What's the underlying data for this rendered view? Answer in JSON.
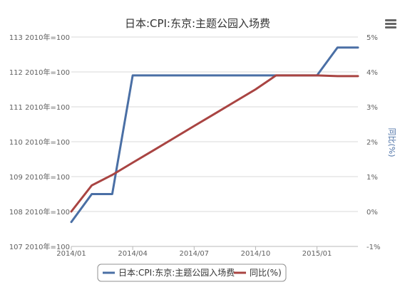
{
  "chart_data": {
    "type": "line",
    "title": "日本:CPI:东京:主题公园入场费",
    "x": [
      "2014/01",
      "2014/02",
      "2014/03",
      "2014/04",
      "2014/05",
      "2014/06",
      "2014/07",
      "2014/08",
      "2014/09",
      "2014/10",
      "2014/11",
      "2014/12",
      "2015/01",
      "2015/02",
      "2015/03"
    ],
    "xticks": [
      "2014/01",
      "2014/04",
      "2014/07",
      "2014/10",
      "2015/01"
    ],
    "y_left": {
      "ylim": [
        107,
        113
      ],
      "ticks": [
        "107 2010年=100",
        "108 2010年=100",
        "109 2010年=100",
        "110 2010年=100",
        "111 2010年=100",
        "112 2010年=100",
        "113 2010年=100"
      ]
    },
    "y_right": {
      "label": "同比(%)",
      "ylim": [
        -1,
        5
      ],
      "ticks": [
        "-1%",
        "0%",
        "1%",
        "2%",
        "3%",
        "4%",
        "5%"
      ]
    },
    "series": [
      {
        "name": "日本:CPI:东京:主题公园入场费",
        "axis": "left",
        "color": "#4a6fa5",
        "values": [
          107.7,
          108.5,
          108.5,
          111.9,
          111.9,
          111.9,
          111.9,
          111.9,
          111.9,
          111.9,
          111.9,
          111.9,
          111.9,
          112.7,
          112.7
        ]
      },
      {
        "name": "同比(%)",
        "axis": "right",
        "color": "#a94442",
        "values": [
          0.0,
          0.75,
          1.05,
          1.4,
          1.75,
          2.1,
          2.45,
          2.8,
          3.15,
          3.5,
          3.9,
          3.9,
          3.9,
          3.88,
          3.88
        ]
      }
    ],
    "grid": true,
    "legend": "bottom"
  },
  "menu_icon": "menu-icon"
}
